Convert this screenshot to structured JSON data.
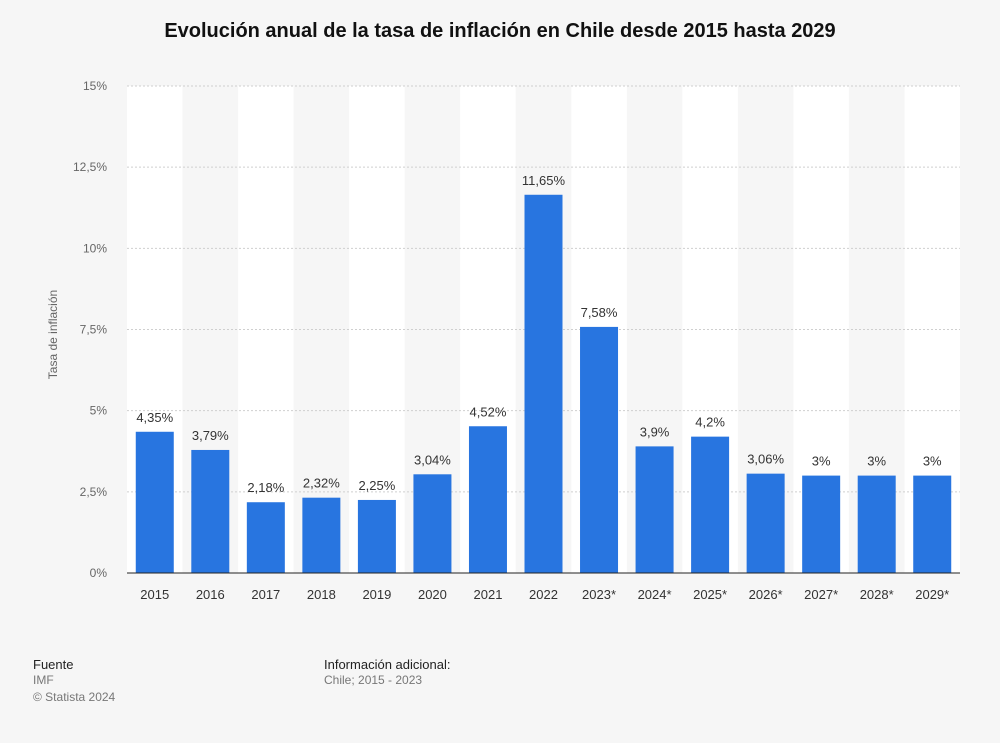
{
  "chart_data": {
    "type": "bar",
    "title": "Evolución anual de la tasa de inflación en Chile desde 2015 hasta 2029",
    "ylabel": "Tasa de inflación",
    "xlabel": "",
    "ylim": [
      0,
      15
    ],
    "yticks": [
      0,
      2.5,
      5,
      7.5,
      10,
      12.5,
      15
    ],
    "ytick_labels": [
      "0%",
      "2,5%",
      "5%",
      "7,5%",
      "10%",
      "12,5%",
      "15%"
    ],
    "categories": [
      "2015",
      "2016",
      "2017",
      "2018",
      "2019",
      "2020",
      "2021",
      "2022",
      "2023*",
      "2024*",
      "2025*",
      "2026*",
      "2027*",
      "2028*",
      "2029*"
    ],
    "values": [
      4.35,
      3.79,
      2.18,
      2.32,
      2.25,
      3.04,
      4.52,
      11.65,
      7.58,
      3.9,
      4.2,
      3.06,
      3,
      3,
      3
    ],
    "value_labels": [
      "4,35%",
      "3,79%",
      "2,18%",
      "2,32%",
      "2,25%",
      "3,04%",
      "4,52%",
      "11,65%",
      "7,58%",
      "3,9%",
      "4,2%",
      "3,06%",
      "3%",
      "3%",
      "3%"
    ],
    "bar_color": "#2875e0",
    "grid": true
  },
  "footer": {
    "source_heading": "Fuente",
    "source_name": "IMF",
    "copyright": "© Statista 2024",
    "info_heading": "Información adicional:",
    "info_text": "Chile; 2015 - 2023"
  }
}
